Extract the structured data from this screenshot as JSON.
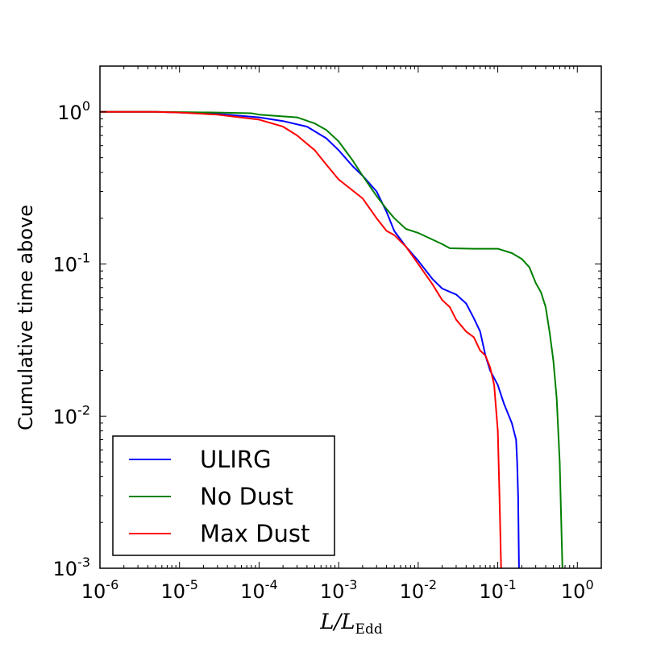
{
  "chart_data": {
    "type": "line",
    "x_scale": "log",
    "y_scale": "log",
    "xlim": [
      1e-06,
      2
    ],
    "ylim": [
      0.001,
      2
    ],
    "xlabel": "L/L",
    "xlabel_subscript": "Edd",
    "ylabel": "Cumulative time above",
    "x_ticks": [
      {
        "base": "10",
        "exp": "-6",
        "value": 1e-06
      },
      {
        "base": "10",
        "exp": "-5",
        "value": 1e-05
      },
      {
        "base": "10",
        "exp": "-4",
        "value": 0.0001
      },
      {
        "base": "10",
        "exp": "-3",
        "value": 0.001
      },
      {
        "base": "10",
        "exp": "-2",
        "value": 0.01
      },
      {
        "base": "10",
        "exp": "-1",
        "value": 0.1
      },
      {
        "base": "10",
        "exp": "0",
        "value": 1
      }
    ],
    "y_ticks": [
      {
        "base": "10",
        "exp": "-3",
        "value": 0.001
      },
      {
        "base": "10",
        "exp": "-2",
        "value": 0.01
      },
      {
        "base": "10",
        "exp": "-1",
        "value": 0.1
      },
      {
        "base": "10",
        "exp": "0",
        "value": 1
      }
    ],
    "grid": false,
    "legend_position": "lower-left",
    "series": [
      {
        "name": "ULIRG",
        "color": "#0000ff",
        "points": [
          [
            1e-06,
            1.0
          ],
          [
            5e-06,
            1.0
          ],
          [
            1e-05,
            0.99
          ],
          [
            3e-05,
            0.97
          ],
          [
            0.0001,
            0.92
          ],
          [
            0.0002,
            0.87
          ],
          [
            0.0004,
            0.8
          ],
          [
            0.0007,
            0.67
          ],
          [
            0.001,
            0.56
          ],
          [
            0.0015,
            0.44
          ],
          [
            0.002,
            0.38
          ],
          [
            0.003,
            0.3
          ],
          [
            0.004,
            0.22
          ],
          [
            0.005,
            0.165
          ],
          [
            0.007,
            0.13
          ],
          [
            0.01,
            0.105
          ],
          [
            0.015,
            0.08
          ],
          [
            0.02,
            0.069
          ],
          [
            0.03,
            0.063
          ],
          [
            0.04,
            0.055
          ],
          [
            0.05,
            0.044
          ],
          [
            0.06,
            0.036
          ],
          [
            0.07,
            0.025
          ],
          [
            0.08,
            0.02
          ],
          [
            0.1,
            0.016
          ],
          [
            0.12,
            0.012
          ],
          [
            0.15,
            0.009
          ],
          [
            0.17,
            0.007
          ],
          [
            0.175,
            0.005
          ],
          [
            0.18,
            0.003
          ],
          [
            0.185,
            0.001
          ]
        ]
      },
      {
        "name": "No Dust",
        "color": "#008000",
        "points": [
          [
            1e-06,
            1.0
          ],
          [
            5e-06,
            1.0
          ],
          [
            3e-05,
            0.99
          ],
          [
            8e-05,
            0.98
          ],
          [
            0.0001,
            0.96
          ],
          [
            0.0003,
            0.92
          ],
          [
            0.0005,
            0.84
          ],
          [
            0.0007,
            0.76
          ],
          [
            0.001,
            0.64
          ],
          [
            0.0015,
            0.48
          ],
          [
            0.002,
            0.38
          ],
          [
            0.003,
            0.28
          ],
          [
            0.004,
            0.23
          ],
          [
            0.005,
            0.2
          ],
          [
            0.007,
            0.17
          ],
          [
            0.01,
            0.16
          ],
          [
            0.02,
            0.135
          ],
          [
            0.025,
            0.127
          ],
          [
            0.05,
            0.126
          ],
          [
            0.1,
            0.126
          ],
          [
            0.15,
            0.118
          ],
          [
            0.2,
            0.108
          ],
          [
            0.25,
            0.095
          ],
          [
            0.3,
            0.075
          ],
          [
            0.35,
            0.065
          ],
          [
            0.4,
            0.052
          ],
          [
            0.45,
            0.035
          ],
          [
            0.5,
            0.023
          ],
          [
            0.55,
            0.013
          ],
          [
            0.6,
            0.005
          ],
          [
            0.65,
            0.001
          ]
        ]
      },
      {
        "name": "Max Dust",
        "color": "#ff0000",
        "points": [
          [
            1e-06,
            1.0
          ],
          [
            5e-06,
            1.0
          ],
          [
            1e-05,
            0.99
          ],
          [
            3e-05,
            0.96
          ],
          [
            0.0001,
            0.89
          ],
          [
            0.0002,
            0.8
          ],
          [
            0.0003,
            0.7
          ],
          [
            0.0005,
            0.56
          ],
          [
            0.0007,
            0.45
          ],
          [
            0.001,
            0.36
          ],
          [
            0.002,
            0.27
          ],
          [
            0.003,
            0.2
          ],
          [
            0.004,
            0.165
          ],
          [
            0.005,
            0.155
          ],
          [
            0.007,
            0.13
          ],
          [
            0.01,
            0.1
          ],
          [
            0.015,
            0.074
          ],
          [
            0.02,
            0.058
          ],
          [
            0.025,
            0.052
          ],
          [
            0.03,
            0.043
          ],
          [
            0.04,
            0.036
          ],
          [
            0.05,
            0.033
          ],
          [
            0.06,
            0.027
          ],
          [
            0.07,
            0.025
          ],
          [
            0.08,
            0.021
          ],
          [
            0.09,
            0.016
          ],
          [
            0.1,
            0.008
          ],
          [
            0.105,
            0.003
          ],
          [
            0.11,
            0.001
          ]
        ]
      }
    ]
  }
}
